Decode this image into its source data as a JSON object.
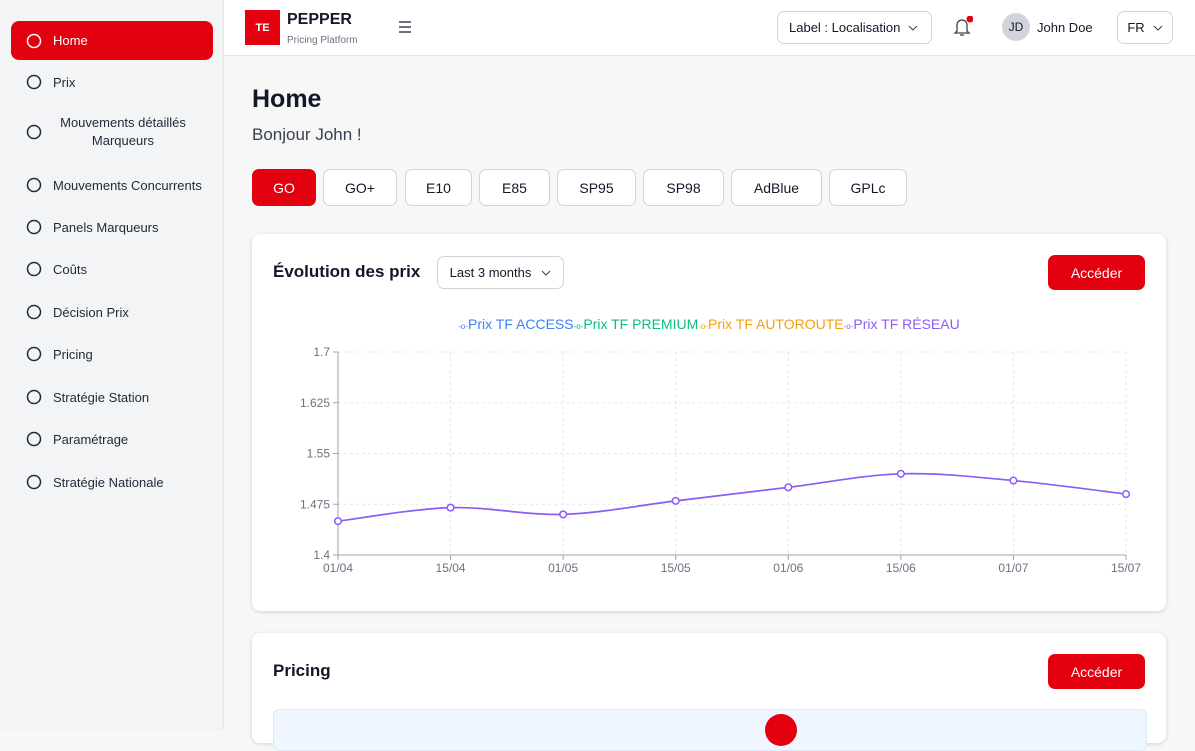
{
  "sidebar": {
    "items": [
      "Home",
      "Prix",
      "Mouvements détaillés Marqueurs",
      "Mouvements Concurrents",
      "Panels Marqueurs",
      "Coûts",
      "Décision Prix",
      "Pricing",
      "Stratégie Station",
      "Paramétrage",
      "Stratégie Nationale"
    ]
  },
  "header": {
    "logo": "TE",
    "brand": "PEPPER",
    "subtitle": "Pricing Platform",
    "label_select": "Label : Localisation",
    "user_initials": "JD",
    "user_name": "John Doe",
    "language": "FR"
  },
  "page": {
    "title": "Home",
    "greeting": "Bonjour John !",
    "fuel_tabs": [
      "GO",
      "GO+",
      "E10",
      "E85",
      "SP95",
      "SP98",
      "AdBlue",
      "GPLc"
    ]
  },
  "price_card": {
    "title": "Évolution des prix",
    "period": "Last 3 months",
    "button": "Accéder",
    "chart_data": {
      "type": "line",
      "categories": [
        "01/04",
        "15/04",
        "01/05",
        "15/05",
        "01/06",
        "15/06",
        "01/07",
        "15/07"
      ],
      "series": [
        {
          "name": "Prix TF ACCESS",
          "color": "#3b82f6"
        },
        {
          "name": "Prix TF PREMIUM",
          "color": "#10b981"
        },
        {
          "name": "Prix TF AUTOROUTE",
          "color": "#f59e0b"
        },
        {
          "name": "Prix TF RÉSEAU",
          "color": "#8b5cf6",
          "values": [
            1.45,
            1.47,
            1.46,
            1.48,
            1.5,
            1.52,
            1.51,
            1.49
          ]
        }
      ],
      "ylim": [
        1.4,
        1.7
      ],
      "yticks": [
        1.4,
        1.475,
        1.55,
        1.625,
        1.7
      ],
      "grid": true
    }
  },
  "pricing_card": {
    "title": "Pricing",
    "button": "Accéder"
  }
}
